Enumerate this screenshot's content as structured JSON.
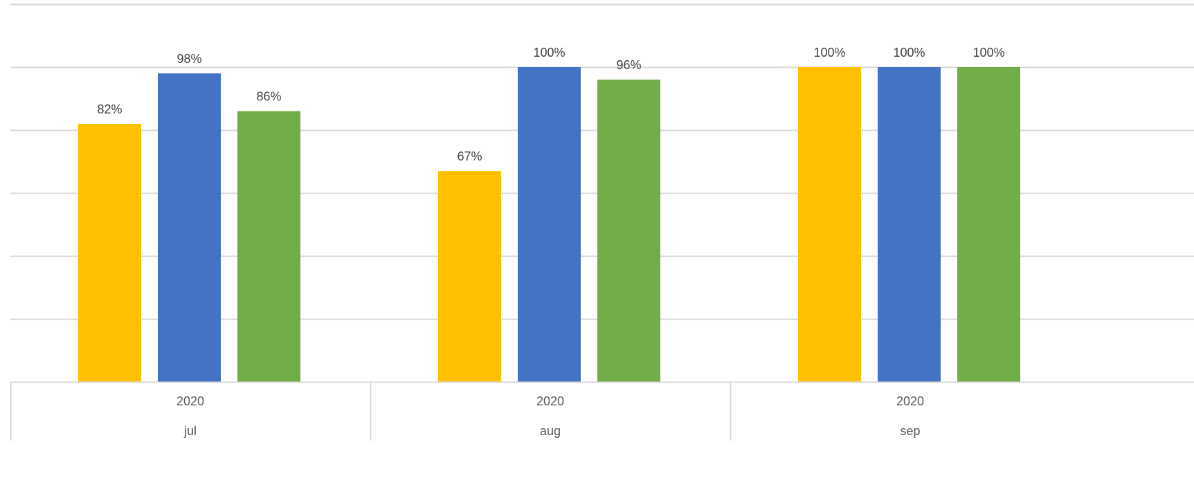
{
  "chart_data": {
    "type": "bar",
    "title": "",
    "xlabel": "",
    "ylabel": "",
    "ylim": [
      0,
      1.2
    ],
    "grid": true,
    "categories": [
      {
        "year": "2020",
        "month": "jul"
      },
      {
        "year": "2020",
        "month": "aug"
      },
      {
        "year": "2020",
        "month": "sep"
      }
    ],
    "series": [
      {
        "color": "#FFC000",
        "values": [
          0.82,
          0.67,
          1.0
        ],
        "labels": [
          "82%",
          "67%",
          "100%"
        ]
      },
      {
        "color": "#4472C4",
        "values": [
          0.98,
          1.0,
          1.0
        ],
        "labels": [
          "98%",
          "100%",
          "100%"
        ]
      },
      {
        "color": "#70AD47",
        "values": [
          0.86,
          0.96,
          1.0
        ],
        "labels": [
          "86%",
          "96%",
          "100%"
        ]
      }
    ]
  }
}
